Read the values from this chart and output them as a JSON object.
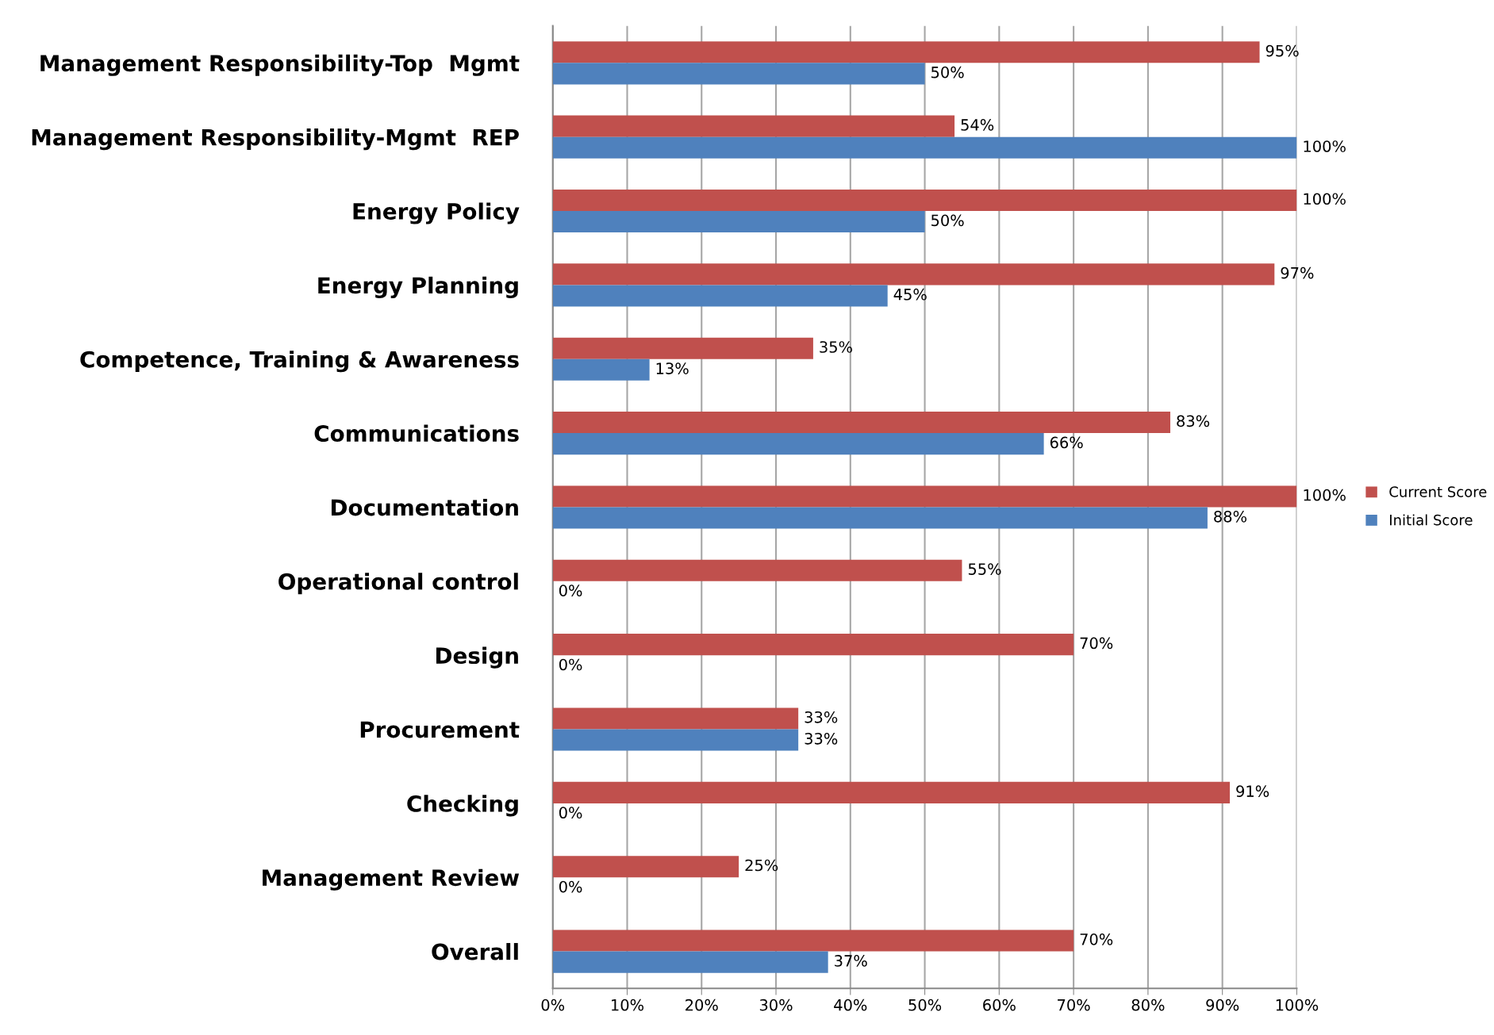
{
  "chart_data": {
    "type": "bar",
    "orientation": "horizontal",
    "categories": [
      "Management Responsibility-Top  Mgmt",
      "Management Responsibility-Mgmt  REP",
      "Energy Policy",
      "Energy Planning",
      "Competence, Training & Awareness",
      "Communications",
      "Documentation",
      "Operational control",
      "Design",
      "Procurement",
      "Checking",
      "Management Review",
      "Overall"
    ],
    "series": [
      {
        "name": "Current Score",
        "color": "#c0504d",
        "values": [
          95,
          54,
          100,
          97,
          35,
          83,
          100,
          55,
          70,
          33,
          91,
          25,
          70
        ],
        "value_labels": [
          "95%",
          "54%",
          "100%",
          "97%",
          "35%",
          "83%",
          "100%",
          "55%",
          "70%",
          "33%",
          "91%",
          "25%",
          "70%"
        ]
      },
      {
        "name": "Initial Score",
        "color": "#4f81bd",
        "values": [
          50,
          100,
          50,
          45,
          13,
          66,
          88,
          0,
          0,
          33,
          0,
          0,
          37
        ],
        "value_labels": [
          "50%",
          "100%",
          "50%",
          "45%",
          "13%",
          "66%",
          "88%",
          "0%",
          "0%",
          "33%",
          "0%",
          "0%",
          "37%"
        ]
      }
    ],
    "xlim": [
      0,
      100
    ],
    "xticks": [
      {
        "value": 0,
        "label": "0%"
      },
      {
        "value": 10,
        "label": "10%"
      },
      {
        "value": 20,
        "label": "20%"
      },
      {
        "value": 30,
        "label": "30%"
      },
      {
        "value": 40,
        "label": "40%"
      },
      {
        "value": 50,
        "label": "50%"
      },
      {
        "value": 60,
        "label": "60%"
      },
      {
        "value": 70,
        "label": "70%"
      },
      {
        "value": 80,
        "label": "80%"
      },
      {
        "value": 90,
        "label": "90%"
      },
      {
        "value": 100,
        "label": "100%"
      }
    ],
    "grid": "x",
    "legend": "right"
  }
}
